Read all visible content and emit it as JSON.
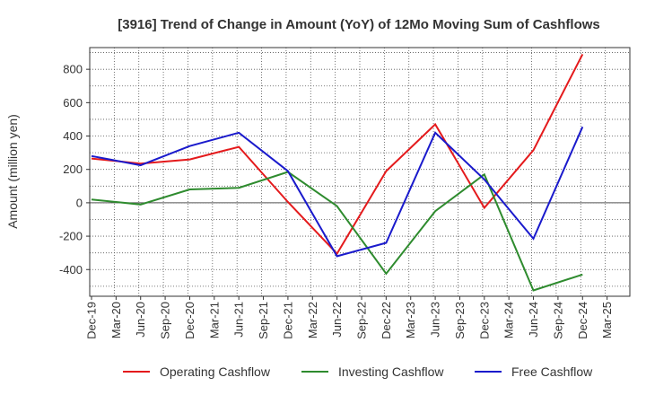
{
  "chart_data": {
    "type": "line",
    "title": "[3916]  Trend of Change in Amount (YoY) of 12Mo Moving Sum of Cashflows",
    "xlabel": "",
    "ylabel": "Amount (million yen)",
    "ylim": [
      -560,
      930
    ],
    "yticks": [
      -400,
      -200,
      0,
      200,
      400,
      600,
      800
    ],
    "grid": true,
    "legend_position": "bottom",
    "categories": [
      "Dec-19",
      "Mar-20",
      "Jun-20",
      "Sep-20",
      "Dec-20",
      "Mar-21",
      "Jun-21",
      "Sep-21",
      "Dec-21",
      "Mar-22",
      "Jun-22",
      "Sep-22",
      "Dec-22",
      "Mar-23",
      "Jun-23",
      "Sep-23",
      "Dec-23",
      "Mar-24",
      "Jun-24",
      "Sep-24",
      "Dec-24",
      "Mar-25"
    ],
    "series": [
      {
        "name": "Operating Cashflow",
        "color": "#e41a1c",
        "points": [
          [
            0,
            265
          ],
          [
            2,
            235
          ],
          [
            4,
            260
          ],
          [
            6,
            335
          ],
          [
            8,
            5
          ],
          [
            10,
            -305
          ],
          [
            12,
            190
          ],
          [
            14,
            470
          ],
          [
            16,
            -30
          ],
          [
            18,
            315
          ],
          [
            20,
            890
          ]
        ]
      },
      {
        "name": "Investing Cashflow",
        "color": "#2e8b2e",
        "points": [
          [
            0,
            20
          ],
          [
            2,
            -10
          ],
          [
            4,
            80
          ],
          [
            6,
            90
          ],
          [
            8,
            185
          ],
          [
            10,
            -20
          ],
          [
            12,
            -425
          ],
          [
            14,
            -50
          ],
          [
            16,
            170
          ],
          [
            18,
            -525
          ],
          [
            20,
            -430
          ]
        ]
      },
      {
        "name": "Free Cashflow",
        "color": "#1a1acc",
        "points": [
          [
            0,
            280
          ],
          [
            2,
            225
          ],
          [
            4,
            340
          ],
          [
            6,
            420
          ],
          [
            8,
            190
          ],
          [
            10,
            -320
          ],
          [
            12,
            -240
          ],
          [
            14,
            420
          ],
          [
            16,
            140
          ],
          [
            18,
            -215
          ],
          [
            20,
            455
          ]
        ]
      }
    ]
  }
}
